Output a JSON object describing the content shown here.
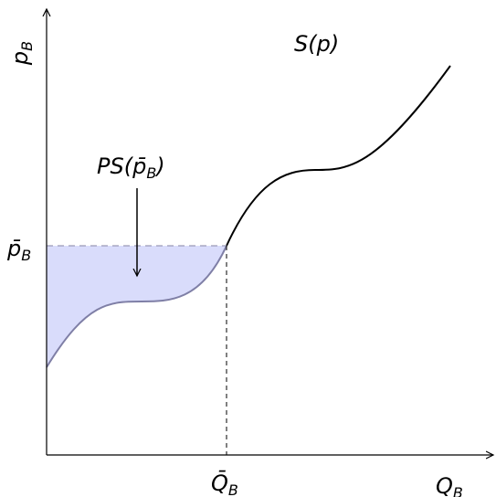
{
  "axes": {
    "y_label": "p",
    "y_label_sub": "B",
    "x_label": "Q",
    "x_label_sub": "B"
  },
  "curve": {
    "label": "S(p)"
  },
  "price_level": {
    "label": "p̄",
    "label_sub": "B"
  },
  "quantity_level": {
    "label": "Q̄",
    "label_sub": "B"
  },
  "surplus": {
    "label": "PS(p̄",
    "label_sub": "B",
    "label_close": ")",
    "fill": "#d9dcfb",
    "edge": "#7f7fa6"
  }
}
